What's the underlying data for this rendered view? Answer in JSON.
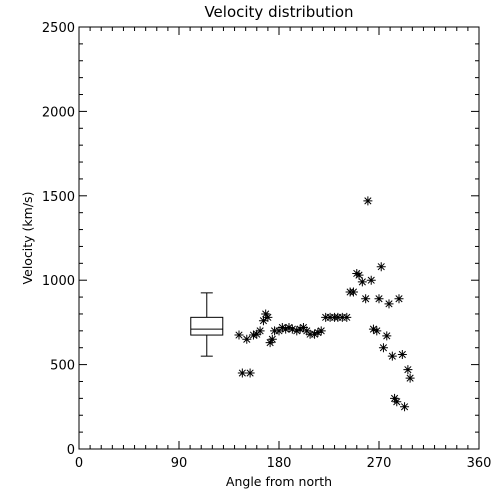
{
  "chart_data": {
    "type": "scatter",
    "title": "Velocity distribution",
    "xlabel": "Angle from north",
    "ylabel": "Velocity (km/s)",
    "xlim": [
      0,
      360
    ],
    "ylim": [
      0,
      2500
    ],
    "xticks": [
      "0",
      "90",
      "180",
      "270",
      "360"
    ],
    "yticks": [
      "0",
      "500",
      "1000",
      "1500",
      "2000",
      "2500"
    ],
    "grid": false,
    "marker": "asterisk",
    "boxplot": {
      "x": 115,
      "whisker_low": 550,
      "q1": 675,
      "median": 710,
      "q3": 780,
      "whisker_high": 925
    },
    "points": [
      [
        144,
        675
      ],
      [
        147,
        450
      ],
      [
        151,
        650
      ],
      [
        154,
        450
      ],
      [
        157,
        675
      ],
      [
        160,
        680
      ],
      [
        163,
        700
      ],
      [
        166,
        760
      ],
      [
        168,
        800
      ],
      [
        170,
        780
      ],
      [
        172,
        630
      ],
      [
        174,
        650
      ],
      [
        176,
        700
      ],
      [
        180,
        700
      ],
      [
        183,
        720
      ],
      [
        186,
        710
      ],
      [
        189,
        720
      ],
      [
        192,
        710
      ],
      [
        196,
        700
      ],
      [
        199,
        710
      ],
      [
        202,
        720
      ],
      [
        205,
        700
      ],
      [
        208,
        680
      ],
      [
        212,
        680
      ],
      [
        215,
        690
      ],
      [
        218,
        700
      ],
      [
        222,
        780
      ],
      [
        226,
        780
      ],
      [
        230,
        780
      ],
      [
        233,
        780
      ],
      [
        237,
        780
      ],
      [
        241,
        780
      ],
      [
        244,
        930
      ],
      [
        247,
        930
      ],
      [
        250,
        1040
      ],
      [
        252,
        1030
      ],
      [
        255,
        990
      ],
      [
        258,
        890
      ],
      [
        260,
        1470
      ],
      [
        263,
        1000
      ],
      [
        265,
        710
      ],
      [
        268,
        700
      ],
      [
        270,
        890
      ],
      [
        272,
        1080
      ],
      [
        274,
        600
      ],
      [
        277,
        670
      ],
      [
        279,
        860
      ],
      [
        282,
        550
      ],
      [
        284,
        300
      ],
      [
        286,
        280
      ],
      [
        288,
        890
      ],
      [
        291,
        560
      ],
      [
        293,
        250
      ],
      [
        296,
        470
      ],
      [
        298,
        420
      ]
    ]
  }
}
